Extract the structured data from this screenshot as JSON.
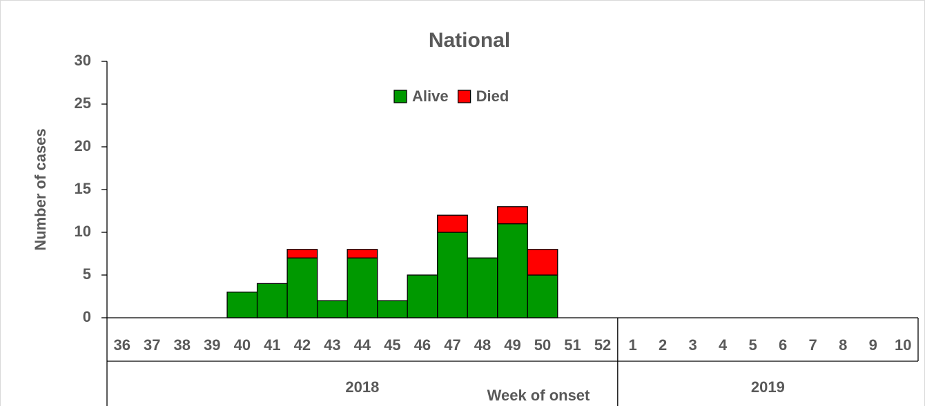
{
  "chart_data": {
    "type": "stacked_bar",
    "title": "National",
    "y_label": "Number of cases",
    "x_label": "Week of onset",
    "categories": [
      "36",
      "37",
      "38",
      "39",
      "40",
      "41",
      "42",
      "43",
      "44",
      "45",
      "46",
      "47",
      "48",
      "49",
      "50",
      "51",
      "52",
      "1",
      "2",
      "3",
      "4",
      "5",
      "6",
      "7",
      "8",
      "9",
      "10"
    ],
    "category_groups": [
      "2018",
      "2018",
      "2018",
      "2018",
      "2018",
      "2018",
      "2018",
      "2018",
      "2018",
      "2018",
      "2018",
      "2018",
      "2018",
      "2018",
      "2018",
      "2018",
      "2018",
      "2019",
      "2019",
      "2019",
      "2019",
      "2019",
      "2019",
      "2019",
      "2019",
      "2019",
      "2019"
    ],
    "series": [
      {
        "name": "Alive",
        "color": "#009900",
        "values": [
          0,
          0,
          0,
          0,
          3,
          4,
          7,
          2,
          7,
          2,
          5,
          10,
          7,
          11,
          5,
          0,
          0,
          0,
          0,
          0,
          0,
          0,
          0,
          0,
          0,
          0,
          0
        ]
      },
      {
        "name": "Died",
        "color": "#ff0000",
        "values": [
          0,
          0,
          0,
          0,
          0,
          0,
          1,
          0,
          1,
          0,
          0,
          2,
          0,
          2,
          3,
          0,
          0,
          0,
          0,
          0,
          0,
          0,
          0,
          0,
          0,
          0,
          0
        ]
      }
    ],
    "ylim": [
      0,
      30
    ],
    "yticks": [
      0,
      5,
      10,
      15,
      20,
      25,
      30
    ],
    "legend": "top"
  }
}
